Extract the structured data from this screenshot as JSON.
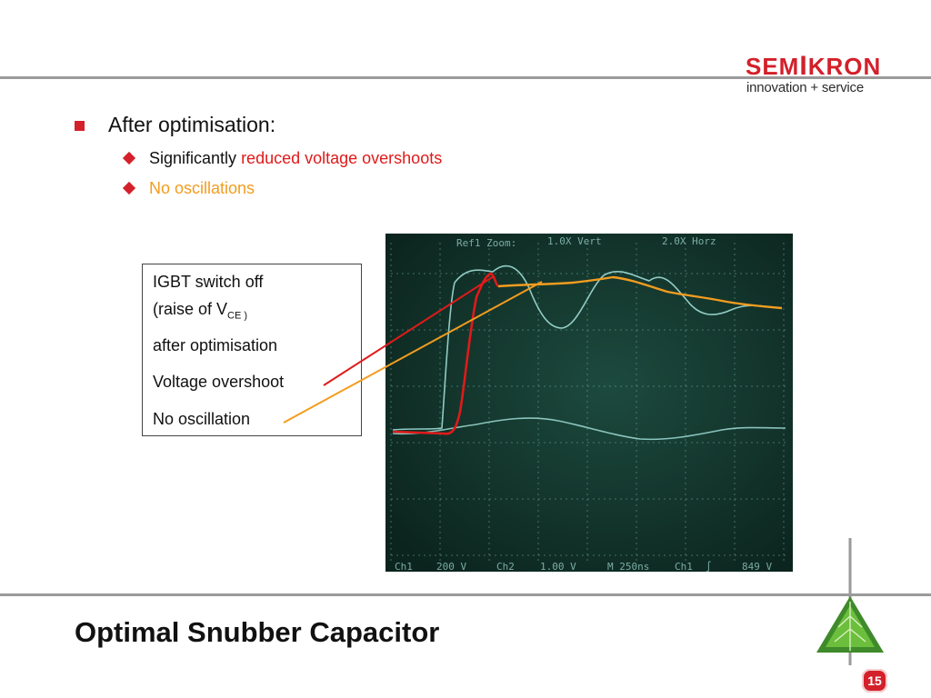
{
  "logo": {
    "word_a": "SEM",
    "word_b": "I",
    "word_c": "KRON",
    "tagline": "innovation + service"
  },
  "bullets": {
    "main": "After optimisation:",
    "sub1_prefix": "Significantly ",
    "sub1_highlight": "reduced voltage overshoots",
    "sub2": "No oscillations"
  },
  "callout": {
    "line1": "IGBT switch off",
    "line2_prefix": "(raise of V",
    "line2_sub": "CE )",
    "line3": "after optimisation",
    "line4": "Voltage overshoot",
    "line5": "No oscillation"
  },
  "scope": {
    "header_left": "Ref1 Zoom:",
    "header_mid": "1.0X Vert",
    "header_right": "2.0X Horz",
    "footer": [
      "Ch1",
      "200 V",
      "Ch2",
      "1.00 V",
      "M 250ns",
      "Ch1",
      "∫",
      "849 V"
    ]
  },
  "title": "Optimal Snubber Capacitor",
  "page_number": "15",
  "colors": {
    "accent": "#d4202a",
    "overshoot": "#e01a1a",
    "oscillation": "#f39c1f",
    "scope_bg": "#11322a",
    "trace": "#a8e6e0"
  }
}
